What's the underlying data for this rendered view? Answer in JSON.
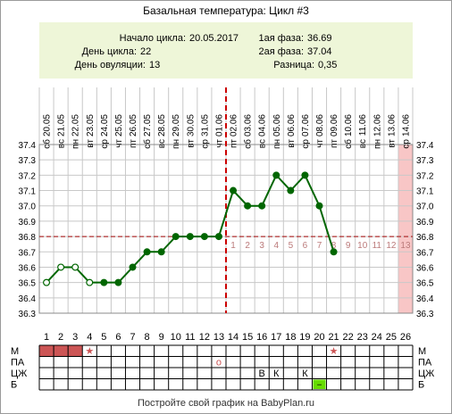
{
  "chart_data": {
    "type": "line",
    "title": "Базальная температура: Цикл #3",
    "info": {
      "rows_left": [
        {
          "label": "Начало цикла:",
          "value": "20.05.2017"
        },
        {
          "label": "День цикла:",
          "value": "22"
        },
        {
          "label": "День овуляции:",
          "value": "13"
        }
      ],
      "rows_right": [
        {
          "label": "1ая фаза:",
          "value": "36.69"
        },
        {
          "label": "2ая фаза:",
          "value": "37.04"
        },
        {
          "label": "Разница:",
          "value": "0,35"
        }
      ]
    },
    "day_numbers": [
      "1",
      "2",
      "3",
      "4",
      "5",
      "6",
      "7",
      "8",
      "9",
      "10",
      "11",
      "12",
      "13",
      "14",
      "15",
      "16",
      "17",
      "18",
      "19",
      "20",
      "21",
      "22",
      "23",
      "24",
      "25",
      "26"
    ],
    "weekdays": [
      "сб",
      "вс",
      "пн",
      "вт",
      "ср",
      "чт",
      "пт",
      "сб",
      "вс",
      "пн",
      "вт",
      "ср",
      "чт",
      "пт",
      "сб",
      "вс",
      "пн",
      "вт",
      "ср",
      "чт",
      "пт",
      "сб",
      "вс",
      "пн",
      "вт",
      "ср"
    ],
    "dates": [
      "20.05",
      "21.05",
      "22.05",
      "23.05",
      "24.05",
      "25.05",
      "26.05",
      "27.05",
      "28.05",
      "29.05",
      "30.05",
      "31.05",
      "01.06",
      "02.06",
      "03.06",
      "04.06",
      "05.06",
      "06.06",
      "07.06",
      "08.06",
      "09.06",
      "10.06",
      "11.06",
      "12.06",
      "13.06",
      "14.06"
    ],
    "ylim": [
      36.3,
      37.4
    ],
    "y_ticks": [
      "36.3",
      "36.4",
      "36.5",
      "36.6",
      "36.7",
      "36.8",
      "36.9",
      "37.0",
      "37.1",
      "37.2",
      "37.3",
      "37.4"
    ],
    "series": [
      {
        "values": [
          36.5,
          36.6,
          36.6,
          36.5,
          36.5,
          36.5,
          36.6,
          36.7,
          36.7,
          36.8,
          36.8,
          36.8,
          36.8,
          37.1,
          37.0,
          37.0,
          37.2,
          37.1,
          37.2,
          37.0,
          36.7,
          null,
          null,
          null,
          null,
          null
        ]
      }
    ],
    "hollow_points": [
      1,
      2,
      3,
      4
    ],
    "coverline": 36.8,
    "ovulation_day": 13,
    "luteal_labels": [
      "1",
      "2",
      "3",
      "4",
      "5",
      "6",
      "7",
      "8",
      "9",
      "10",
      "11",
      "12",
      "13"
    ],
    "predicted_day": 26,
    "rows": [
      {
        "label": "М",
        "menses_days": [
          1,
          2,
          3
        ],
        "symbols": [
          {
            "day": 4,
            "text": "★"
          },
          {
            "day": 21,
            "text": "★"
          }
        ]
      },
      {
        "label": "ПА",
        "symbols": [
          {
            "day": 13,
            "text": "o"
          }
        ]
      },
      {
        "label": "ЦЖ",
        "symbols": [
          {
            "day": 16,
            "text": "В"
          },
          {
            "day": 17,
            "text": "К"
          },
          {
            "day": 19,
            "text": "К"
          }
        ]
      },
      {
        "label": "Б",
        "symbols": [
          {
            "day": 20,
            "text": "−"
          }
        ]
      }
    ],
    "colors": {
      "line": "#006600",
      "grid": "#c8c8c8",
      "coverline": "#b03030",
      "ovulation": "#cc0000",
      "info_bg": "#eef6d8",
      "menses": "#cc5555",
      "predicted": "#f8c6c6",
      "bb_marker": "#66dd00",
      "luteal_text": "#bb7a7a",
      "star": "#cc5555"
    },
    "grid": true
  },
  "footer": {
    "text": "Постройте свой график на BabyPlan.ru"
  }
}
